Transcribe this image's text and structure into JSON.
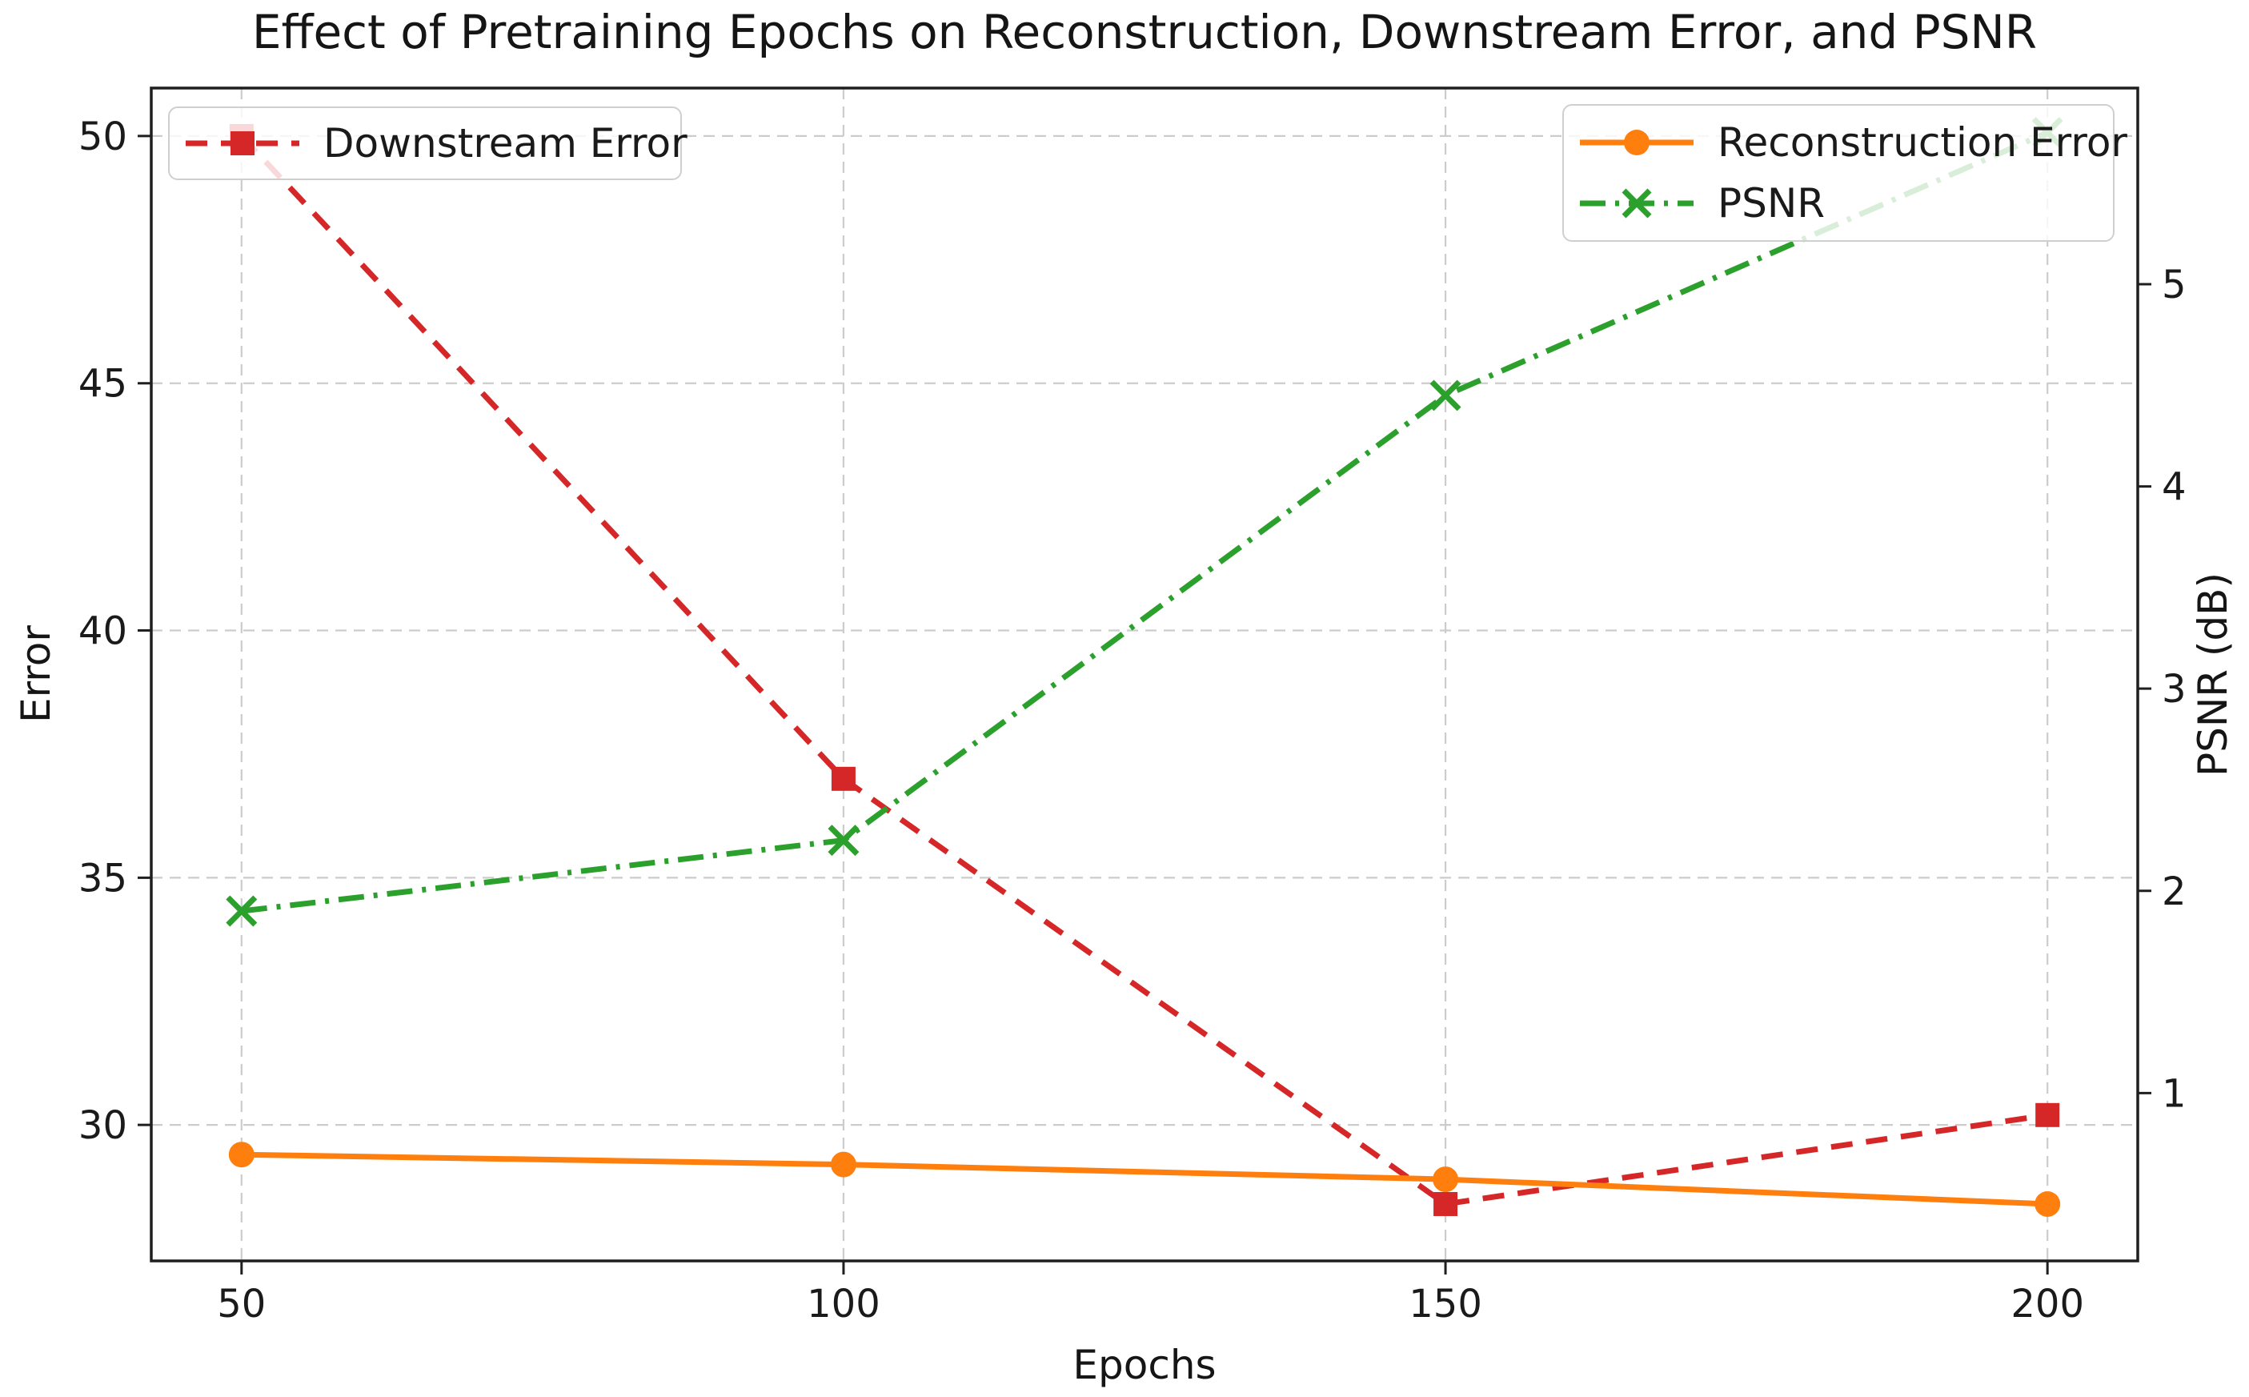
{
  "chart_data": {
    "type": "line",
    "title": "Effect of Pretraining Epochs on Reconstruction, Downstream Error, and PSNR",
    "xlabel": "Epochs",
    "ylabel_left": "Error",
    "ylabel_right": "PSNR (dB)",
    "x": [
      50,
      100,
      150,
      200
    ],
    "x_ticks": [
      50,
      100,
      150,
      200
    ],
    "xlim": [
      42.5,
      207.5
    ],
    "left_ticks": [
      30,
      35,
      40,
      45,
      50
    ],
    "left_ylim": [
      27.25,
      50.97
    ],
    "right_ticks": [
      1,
      2,
      3,
      4,
      5
    ],
    "right_ylim": [
      0.17,
      5.97
    ],
    "grid": true,
    "grid_color": "#cccccc",
    "spine_color": "#1f1f1f",
    "series": [
      {
        "name": "Downstream Error",
        "axis": "left",
        "values": [
          50.0,
          37.0,
          28.4,
          30.2
        ],
        "color": "#d62728",
        "linestyle": "dashed",
        "marker": "square"
      },
      {
        "name": "Reconstruction Error",
        "axis": "left",
        "values": [
          29.4,
          29.2,
          28.9,
          28.4
        ],
        "color": "#ff7f0e",
        "linestyle": "solid",
        "marker": "circle"
      },
      {
        "name": "PSNR",
        "axis": "right",
        "values": [
          1.9,
          2.25,
          4.45,
          5.75
        ],
        "color": "#2ca02c",
        "linestyle": "dashdot",
        "marker": "x"
      }
    ],
    "legend_left_items": [
      "Downstream Error"
    ],
    "legend_right_items": [
      "Reconstruction Error",
      "PSNR"
    ]
  }
}
